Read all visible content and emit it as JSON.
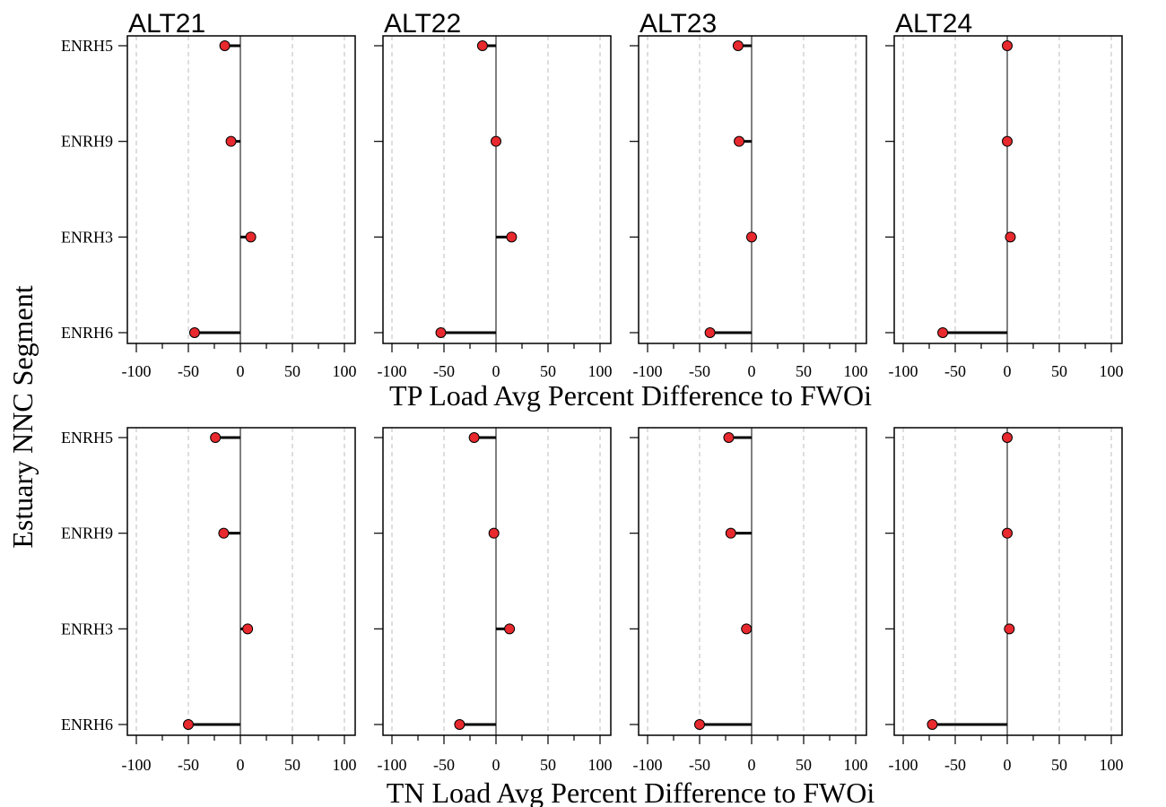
{
  "ylabel": "Estuary NNC Segment",
  "colors": {
    "point": "#e8292e",
    "stem": "#000000",
    "grid": "#bdbdbd"
  },
  "chart_data": [
    {
      "type": "lollipop",
      "xlabel": "TP Load Avg Percent Difference to FWOi",
      "xlim": [
        -100,
        100
      ],
      "xticks": [
        -100,
        -50,
        0,
        50,
        100
      ],
      "categories": [
        "ENRH5",
        "ENRH9",
        "ENRH3",
        "ENRH6"
      ],
      "grid": "vertical dashed",
      "series": [
        {
          "name": "ALT21",
          "values": [
            -15,
            -9,
            10,
            -44
          ]
        },
        {
          "name": "ALT22",
          "values": [
            -13,
            0,
            15,
            -53
          ]
        },
        {
          "name": "ALT23",
          "values": [
            -13,
            -12,
            0,
            -40
          ]
        },
        {
          "name": "ALT24",
          "values": [
            0,
            0,
            3,
            -62
          ]
        }
      ]
    },
    {
      "type": "lollipop",
      "xlabel": "TN Load Avg Percent Difference to FWOi",
      "xlim": [
        -100,
        100
      ],
      "xticks": [
        -100,
        -50,
        0,
        50,
        100
      ],
      "categories": [
        "ENRH5",
        "ENRH9",
        "ENRH3",
        "ENRH6"
      ],
      "grid": "vertical dashed",
      "series": [
        {
          "name": "ALT21",
          "values": [
            -24,
            -16,
            7,
            -50
          ]
        },
        {
          "name": "ALT22",
          "values": [
            -21,
            -2,
            13,
            -35
          ]
        },
        {
          "name": "ALT23",
          "values": [
            -22,
            -20,
            -5,
            -50
          ]
        },
        {
          "name": "ALT24",
          "values": [
            0,
            0,
            2,
            -72
          ]
        }
      ]
    }
  ]
}
